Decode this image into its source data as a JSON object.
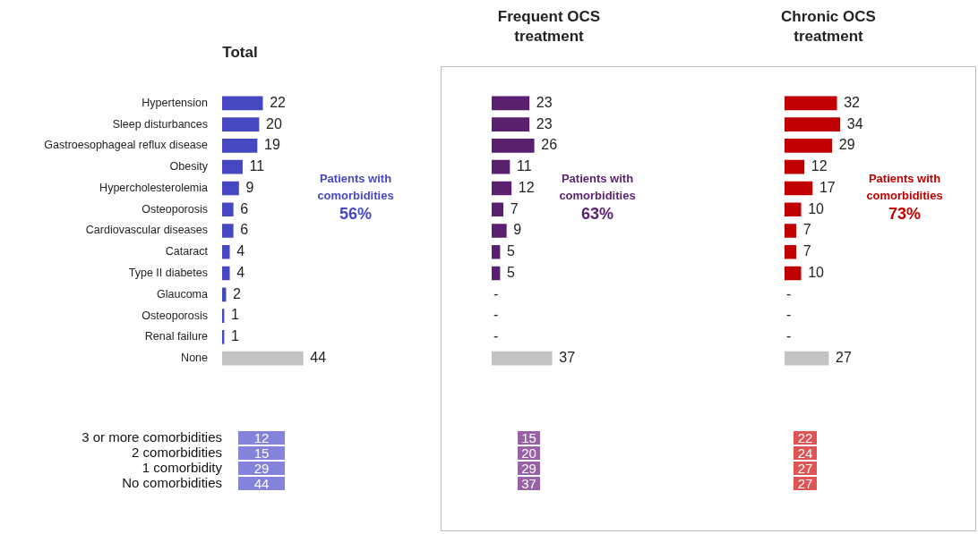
{
  "chart_data": [
    {
      "type": "bar",
      "orientation": "horizontal",
      "title": "Total",
      "categories": [
        "Hypertension",
        "Sleep disturbances",
        "Gastroesophageal reflux disease",
        "Obesity",
        "Hypercholesterolemia",
        "Osteoporosis",
        "Cardiovascular diseases",
        "Cataract",
        "Type II diabetes",
        "Glaucoma",
        "Osteoporosis",
        "Renal failure",
        "None"
      ],
      "values": [
        22,
        20,
        19,
        11,
        9,
        6,
        6,
        4,
        4,
        2,
        1,
        1,
        44
      ],
      "colors": [
        "#4648c2",
        "#4648c2",
        "#4648c2",
        "#4648c2",
        "#4648c2",
        "#4648c2",
        "#4648c2",
        "#4648c2",
        "#4648c2",
        "#4648c2",
        "#4648c2",
        "#4648c2",
        "#c3c3c3"
      ],
      "data_labels": true,
      "annotations": [
        "Patients with comorbidities",
        "56%"
      ]
    },
    {
      "type": "bar",
      "orientation": "horizontal",
      "title": "Frequent OCS treatment",
      "categories": [
        null,
        null,
        null,
        null,
        null,
        null,
        null,
        null,
        null,
        null,
        null,
        null,
        null
      ],
      "values": [
        23,
        23,
        26,
        11,
        12,
        7,
        9,
        5,
        5,
        null,
        null,
        null,
        37
      ],
      "value_labels": [
        "23",
        "23",
        "26",
        "11",
        "12",
        "7",
        "9",
        "5",
        "5",
        "-",
        "-",
        "-",
        "37"
      ],
      "colors": [
        "#5a1f6e",
        "#5a1f6e",
        "#5a1f6e",
        "#5a1f6e",
        "#5a1f6e",
        "#5a1f6e",
        "#5a1f6e",
        "#5a1f6e",
        "#5a1f6e",
        "#5a1f6e",
        "#5a1f6e",
        "#5a1f6e",
        "#c3c3c3"
      ],
      "annotations": [
        "Patients with comorbidities",
        "63%"
      ]
    },
    {
      "type": "bar",
      "orientation": "horizontal",
      "title": "Chronic OCS treatment",
      "categories": [
        null,
        null,
        null,
        null,
        null,
        null,
        null,
        null,
        null,
        null,
        null,
        null,
        null
      ],
      "values": [
        32,
        34,
        29,
        12,
        17,
        10,
        7,
        7,
        10,
        null,
        null,
        null,
        27
      ],
      "value_labels": [
        "32",
        "34",
        "29",
        "12",
        "17",
        "10",
        "7",
        "7",
        "10",
        "-",
        "-",
        "-",
        "27"
      ],
      "colors": [
        "#c00000",
        "#c00000",
        "#c00000",
        "#c00000",
        "#c00000",
        "#c00000",
        "#c00000",
        "#c00000",
        "#c00000",
        "#c00000",
        "#c00000",
        "#c00000",
        "#c3c3c3"
      ],
      "annotations": [
        "Patients with comorbidities",
        "73%"
      ]
    },
    {
      "type": "other",
      "categories": [
        "3 or more comorbidities",
        "2 comorbidities",
        "1 comorbidity",
        "No comorbidities"
      ],
      "values": [
        12,
        15,
        29,
        44
      ],
      "color": "#8383dc",
      "data_labels": true
    },
    {
      "type": "other",
      "categories": [
        null,
        null,
        null,
        null
      ],
      "values": [
        15,
        20,
        29,
        37
      ],
      "color": "#9862a6",
      "data_labels": true
    },
    {
      "type": "other",
      "categories": [
        null,
        null,
        null,
        null
      ],
      "values": [
        22,
        24,
        27,
        27
      ],
      "color": "#df5454",
      "data_labels": true
    }
  ]
}
